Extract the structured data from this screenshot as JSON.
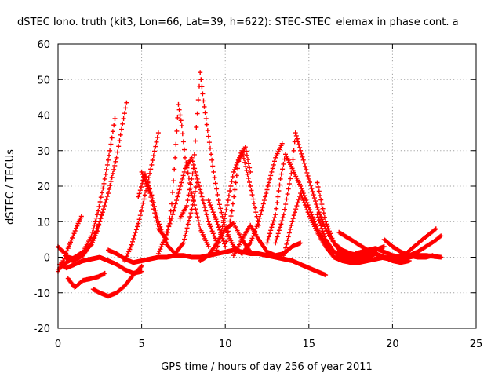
{
  "chart_data": {
    "type": "scatter",
    "title": "dSTEC Iono. truth (kit3, Lon=66, Lat=39, h=622): STEC-STEC_elemax in phase cont. a",
    "xlabel": "GPS time / hours of day 256 of year 2011",
    "ylabel": "dSTEC  / TECUs",
    "xlim": [
      0,
      25
    ],
    "ylim": [
      -20,
      60
    ],
    "x_ticks": [
      0,
      5,
      10,
      15,
      20,
      25
    ],
    "y_ticks": [
      -20,
      -10,
      0,
      10,
      20,
      30,
      40,
      50,
      60
    ],
    "x_tick_labels": [
      "0",
      "5",
      "10",
      "15",
      "20",
      "25"
    ],
    "y_tick_labels": [
      "-20",
      "-10",
      "0",
      "10",
      "20",
      "30",
      "40",
      "50",
      "60"
    ],
    "grid": true,
    "marker": "plus",
    "color": "#ff0000",
    "series": [
      {
        "x": [
          0.0,
          0.3,
          0.6,
          0.9,
          1.2,
          1.4
        ],
        "y": [
          -4.0,
          -1.0,
          2.5,
          6.0,
          9.5,
          11.5
        ]
      },
      {
        "x": [
          0.0,
          0.3,
          0.6,
          1.0,
          1.5,
          2.0,
          2.4,
          2.8,
          3.1,
          3.4
        ],
        "y": [
          3.0,
          1.5,
          0.0,
          -0.5,
          1.5,
          6.0,
          13.0,
          22.0,
          30.0,
          39.0
        ]
      },
      {
        "x": [
          0.5,
          0.9,
          1.5,
          2.0,
          2.5,
          3.0,
          3.5,
          3.8,
          4.1
        ],
        "y": [
          -0.5,
          -1.0,
          0.5,
          4.0,
          10.0,
          18.0,
          28.0,
          36.0,
          43.5
        ]
      },
      {
        "x": [
          0.1,
          0.5,
          1.0,
          1.5,
          2.0,
          2.4,
          2.6
        ],
        "y": [
          -3.0,
          -1.5,
          0.0,
          1.5,
          3.5,
          8.0,
          12.0
        ]
      },
      {
        "x": [
          0.6,
          1.0,
          1.5,
          2.0,
          2.4,
          2.8
        ],
        "y": [
          -6.0,
          -8.5,
          -6.5,
          -6.0,
          -5.5,
          -4.5
        ]
      },
      {
        "x": [
          0.1,
          0.5,
          1.0,
          1.5,
          2.0,
          2.5,
          3.0,
          3.5,
          4.0,
          4.5,
          5.0
        ],
        "y": [
          -2.0,
          -3.0,
          -2.0,
          -1.0,
          -0.5,
          0.0,
          -1.0,
          -2.0,
          -3.5,
          -4.5,
          -4.0
        ]
      },
      {
        "x": [
          2.1,
          2.5,
          3.0,
          3.5,
          4.0,
          4.5,
          5.0
        ],
        "y": [
          -9.0,
          -10.0,
          -11.0,
          -10.0,
          -8.0,
          -5.0,
          -2.5
        ]
      },
      {
        "x": [
          3.0,
          3.5,
          4.0,
          4.5,
          5.0,
          5.5,
          6.0,
          6.5,
          7.0,
          7.5,
          8.0,
          8.5,
          9.0,
          9.5,
          10.0,
          10.5,
          11.0,
          11.5,
          12.0,
          12.5,
          13.0,
          13.5,
          14.0,
          14.5,
          15.0,
          15.5,
          16.0
        ],
        "y": [
          2.0,
          1.0,
          -0.5,
          -1.5,
          -1.0,
          -0.5,
          0.0,
          0.0,
          0.5,
          0.5,
          0.0,
          0.0,
          0.5,
          1.0,
          1.5,
          2.0,
          1.5,
          1.0,
          1.0,
          0.5,
          0.0,
          -0.5,
          -1.0,
          -2.0,
          -3.0,
          -4.0,
          -5.0
        ]
      },
      {
        "x": [
          4.0,
          4.4,
          4.8,
          5.2,
          5.6,
          6.0
        ],
        "y": [
          -1.0,
          3.5,
          9.5,
          17.5,
          26.0,
          35.0
        ]
      },
      {
        "x": [
          4.8,
          5.2,
          5.6,
          6.0,
          6.5,
          7.0,
          7.5,
          8.0,
          8.3
        ],
        "y": [
          17.0,
          23.5,
          17.5,
          10.0,
          3.5,
          1.0,
          4.0,
          13.5,
          21.0
        ]
      },
      {
        "x": [
          5.0,
          5.5,
          6.0,
          6.5,
          6.8,
          7.0,
          7.2,
          7.4,
          7.6,
          8.0,
          8.5,
          9.0
        ],
        "y": [
          24.0,
          18.0,
          8.0,
          5.0,
          15.0,
          28.0,
          43.0,
          37.0,
          28.0,
          18.0,
          8.0,
          3.0
        ]
      },
      {
        "x": [
          6.0,
          6.4,
          6.8,
          7.2,
          7.6,
          8.0,
          8.5,
          9.0,
          9.5
        ],
        "y": [
          1.0,
          5.5,
          11.0,
          18.0,
          25.0,
          28.0,
          19.0,
          10.0,
          4.0
        ]
      },
      {
        "x": [
          7.3,
          7.7,
          8.1,
          8.5,
          8.7,
          9.0,
          9.3,
          9.6,
          10.0,
          10.5,
          11.0
        ],
        "y": [
          11.0,
          14.5,
          25.0,
          52.0,
          44.0,
          34.0,
          24.0,
          16.0,
          8.0,
          3.0,
          1.0
        ]
      },
      {
        "x": [
          8.5,
          9.0,
          9.5,
          10.0,
          10.5,
          11.0,
          11.5
        ],
        "y": [
          -1.0,
          0.5,
          4.0,
          8.0,
          9.5,
          5.0,
          1.5
        ]
      },
      {
        "x": [
          9.0,
          9.5,
          10.0,
          10.4,
          10.8,
          11.2,
          11.5
        ],
        "y": [
          16.0,
          10.0,
          3.0,
          13.0,
          27.0,
          31.0,
          24.0
        ]
      },
      {
        "x": [
          9.5,
          10.0,
          10.5,
          11.0,
          11.5,
          12.0
        ],
        "y": [
          2.0,
          12.0,
          24.0,
          30.0,
          20.0,
          9.0
        ]
      },
      {
        "x": [
          10.5,
          11.0,
          11.5,
          12.0,
          12.5,
          13.0,
          13.5,
          14.0,
          14.5
        ],
        "y": [
          0.5,
          5.0,
          9.0,
          5.0,
          1.5,
          0.5,
          1.0,
          3.0,
          4.0
        ]
      },
      {
        "x": [
          11.0,
          11.5,
          12.0,
          12.5,
          13.0,
          13.4
        ],
        "y": [
          1.0,
          4.0,
          10.0,
          19.0,
          28.0,
          32.0
        ]
      },
      {
        "x": [
          12.5,
          13.0,
          13.3,
          13.6,
          14.0,
          14.5,
          15.0,
          15.5,
          16.0,
          16.5,
          17.0
        ],
        "y": [
          4.0,
          12.0,
          22.0,
          29.0,
          25.0,
          20.0,
          14.0,
          8.0,
          4.0,
          1.5,
          0.5
        ]
      },
      {
        "x": [
          13.0,
          13.5,
          14.0,
          14.2,
          14.5,
          15.0,
          15.5,
          16.0,
          16.5,
          17.0,
          17.5,
          18.0
        ],
        "y": [
          4.0,
          12.0,
          25.0,
          35.0,
          30.0,
          22.0,
          14.0,
          8.0,
          4.0,
          2.0,
          1.0,
          0.5
        ]
      },
      {
        "x": [
          13.5,
          14.0,
          14.5,
          15.0,
          15.5,
          16.0,
          16.5,
          17.0,
          17.5,
          18.0,
          18.5,
          19.0,
          19.5,
          20.0
        ],
        "y": [
          0.5,
          10.0,
          18.0,
          12.0,
          7.0,
          3.0,
          0.0,
          -1.0,
          -1.5,
          -1.5,
          -1.0,
          -0.5,
          0.0,
          -0.5
        ]
      },
      {
        "x": [
          15.5,
          16.0,
          16.5,
          17.0,
          17.5,
          18.0,
          18.5,
          19.0
        ],
        "y": [
          21.0,
          10.0,
          4.0,
          1.0,
          0.0,
          -0.5,
          0.0,
          1.0
        ]
      },
      {
        "x": [
          15.5,
          16.0,
          16.5,
          17.0,
          17.5,
          18.0,
          18.5,
          19.0,
          19.5
        ],
        "y": [
          12.0,
          5.0,
          1.5,
          0.0,
          -0.5,
          0.0,
          1.0,
          2.0,
          3.0
        ]
      },
      {
        "x": [
          16.8,
          17.5,
          18.0,
          18.5,
          19.0,
          19.5,
          20.0,
          20.5,
          21.0
        ],
        "y": [
          7.0,
          5.0,
          3.5,
          2.0,
          1.0,
          0.0,
          -1.0,
          -1.5,
          -1.0
        ]
      },
      {
        "x": [
          17.8,
          18.5,
          19.0,
          19.5,
          20.0,
          20.5,
          21.0,
          21.5,
          22.0,
          22.5,
          22.9
        ],
        "y": [
          1.0,
          2.0,
          2.5,
          1.5,
          0.5,
          0.0,
          0.5,
          1.5,
          3.0,
          4.5,
          6.0
        ]
      },
      {
        "x": [
          19.5,
          20.0,
          20.5,
          21.0,
          21.5,
          22.0,
          22.4
        ],
        "y": [
          5.0,
          3.0,
          1.5,
          0.5,
          0.0,
          0.0,
          0.5
        ]
      },
      {
        "x": [
          19.3,
          19.8,
          20.3,
          20.8,
          21.3,
          21.8,
          22.2,
          22.6
        ],
        "y": [
          0.0,
          -0.5,
          0.0,
          1.0,
          3.0,
          5.0,
          6.5,
          8.0
        ]
      },
      {
        "x": [
          20.0,
          20.5,
          21.0,
          21.5,
          22.0,
          22.5,
          22.9
        ],
        "y": [
          -0.5,
          -0.5,
          0.0,
          0.5,
          0.5,
          0.2,
          0.0
        ]
      }
    ]
  }
}
